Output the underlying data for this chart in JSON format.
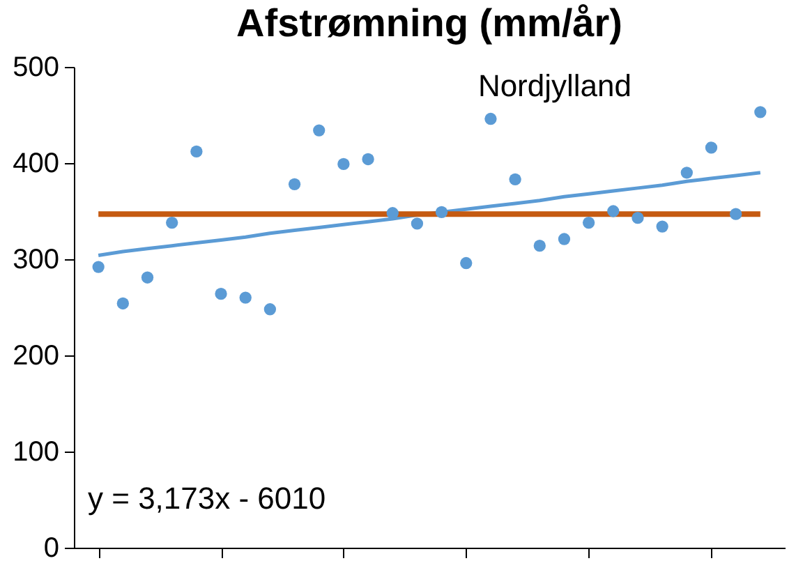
{
  "chart_data": {
    "type": "scatter",
    "title": "Afstrømning (mm/år)",
    "annotations": [
      "Nordjylland",
      "y = 3,173x - 6010"
    ],
    "categories": [
      null,
      null,
      null,
      null,
      null,
      null,
      null,
      null,
      null,
      null,
      null,
      null,
      null,
      null,
      null,
      null,
      null,
      null,
      null,
      null,
      null,
      null,
      null,
      null,
      null,
      null,
      null,
      null
    ],
    "series": [
      {
        "type": "scatter",
        "color": "#5b9bd5",
        "values": [
          292,
          254,
          281,
          338,
          412,
          264,
          260,
          248,
          378,
          434,
          399,
          404,
          348,
          337,
          349,
          296,
          446,
          383,
          314,
          321,
          338,
          350,
          343,
          334,
          390,
          416,
          347,
          453
        ]
      },
      {
        "type": "line",
        "color": "#5b9bd5",
        "marker": "none",
        "values": [
          304,
          308,
          311,
          314,
          317,
          320,
          323,
          327,
          330,
          333,
          336,
          339,
          342,
          346,
          349,
          352,
          355,
          358,
          361,
          365,
          368,
          371,
          374,
          377,
          381,
          384,
          387,
          390
        ]
      }
    ],
    "ref_lines": [
      {
        "axis": "y",
        "value": 347,
        "color": "#c55a11"
      }
    ],
    "ylim": [
      0,
      500
    ],
    "yticks": [
      0,
      100,
      200,
      300,
      400,
      500
    ],
    "tick_labels": "y",
    "grid": false,
    "marker": "circle"
  }
}
